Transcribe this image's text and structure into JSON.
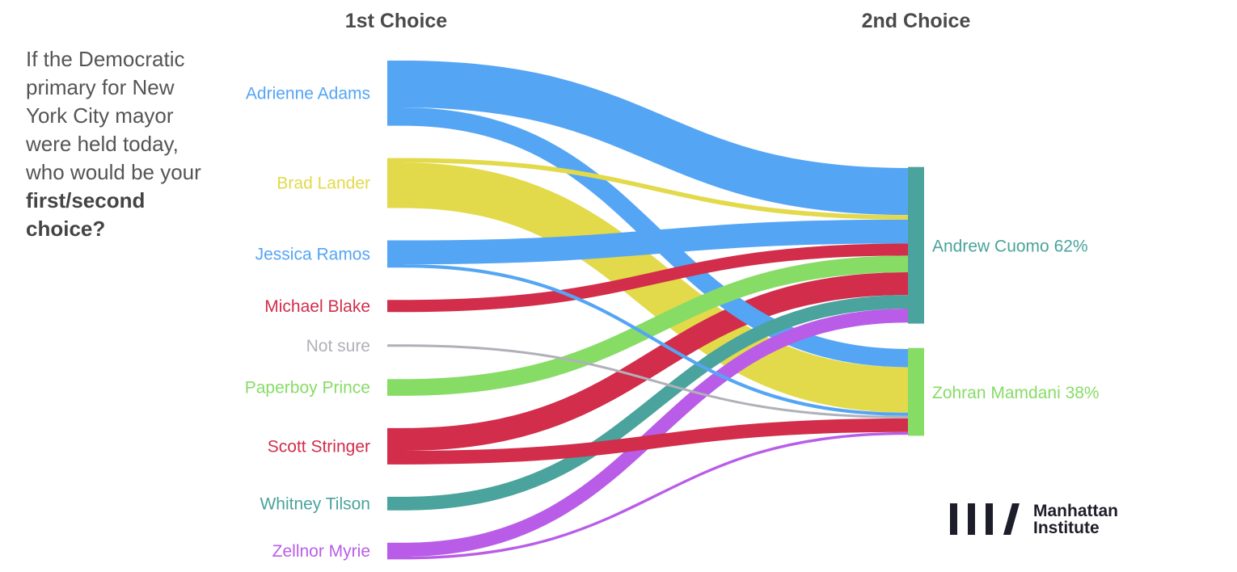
{
  "question": {
    "text": "If the Democratic primary for New York City mayor were held today, who would be your",
    "bold": "first/second choice?"
  },
  "logo": {
    "line1": "Manhattan",
    "line2": "Institute"
  },
  "chart_data": {
    "type": "sankey",
    "columns": [
      "1st Choice",
      "2nd Choice"
    ],
    "source_nodes": [
      {
        "name": "Adrienne Adams",
        "color": "#55a5f5",
        "value": 21.5
      },
      {
        "name": "Brad Lander",
        "color": "#e2da4a",
        "value": 16.5
      },
      {
        "name": "Jessica Ramos",
        "color": "#55a5f5",
        "value": 9.0
      },
      {
        "name": "Michael Blake",
        "color": "#d22d4a",
        "value": 4.0
      },
      {
        "name": "Not sure",
        "color": "#b0b0b8",
        "value": 0.8
      },
      {
        "name": "Paperboy Prince",
        "color": "#87dc66",
        "value": 5.5
      },
      {
        "name": "Scott Stringer",
        "color": "#d22d4a",
        "value": 12.0
      },
      {
        "name": "Whitney Tilson",
        "color": "#4aa39c",
        "value": 4.5
      },
      {
        "name": "Zellnor Myrie",
        "color": "#b95de8",
        "value": 5.5
      }
    ],
    "target_nodes": [
      {
        "name": "Andrew Cuomo",
        "label": "Andrew Cuomo 62%",
        "color": "#4aa39c",
        "percent": 62
      },
      {
        "name": "Zohran Mamdani",
        "label": "Zohran Mamdani 38%",
        "color": "#87dc66",
        "percent": 38
      }
    ],
    "links": [
      {
        "source": "Adrienne Adams",
        "target": "Andrew Cuomo",
        "value": 15.5
      },
      {
        "source": "Brad Lander",
        "target": "Andrew Cuomo",
        "value": 1.5
      },
      {
        "source": "Jessica Ramos",
        "target": "Andrew Cuomo",
        "value": 7.9
      },
      {
        "source": "Michael Blake",
        "target": "Andrew Cuomo",
        "value": 4.0
      },
      {
        "source": "Paperboy Prince",
        "target": "Andrew Cuomo",
        "value": 5.5
      },
      {
        "source": "Scott Stringer",
        "target": "Andrew Cuomo",
        "value": 7.5
      },
      {
        "source": "Whitney Tilson",
        "target": "Andrew Cuomo",
        "value": 4.5
      },
      {
        "source": "Zellnor Myrie",
        "target": "Andrew Cuomo",
        "value": 4.6
      },
      {
        "source": "Adrienne Adams",
        "target": "Zohran Mamdani",
        "value": 6.0
      },
      {
        "source": "Brad Lander",
        "target": "Zohran Mamdani",
        "value": 15.0
      },
      {
        "source": "Jessica Ramos",
        "target": "Zohran Mamdani",
        "value": 1.1
      },
      {
        "source": "Not sure",
        "target": "Zohran Mamdani",
        "value": 0.8
      },
      {
        "source": "Scott Stringer",
        "target": "Zohran Mamdani",
        "value": 4.5
      },
      {
        "source": "Zellnor Myrie",
        "target": "Zohran Mamdani",
        "value": 0.9
      }
    ]
  }
}
